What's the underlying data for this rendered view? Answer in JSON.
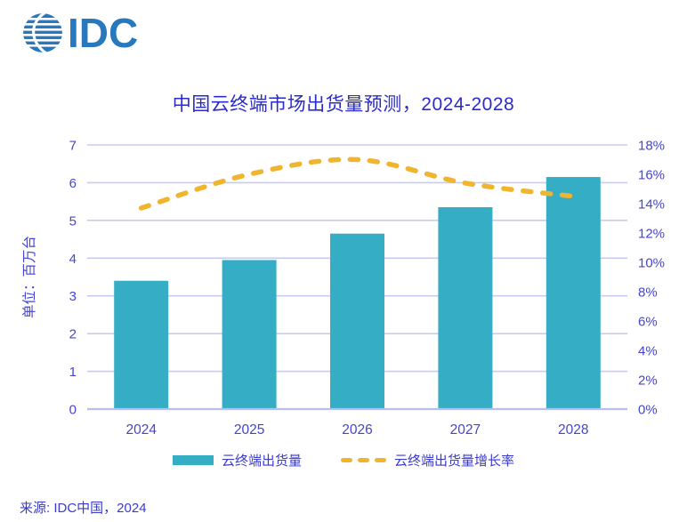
{
  "logo": {
    "text": "IDC",
    "color": "#2878BE"
  },
  "title": {
    "text": "中国云终端市场出货量预测，2024-2028",
    "color": "#2B2BCC"
  },
  "source": "来源: IDC中国，2024",
  "legend": {
    "items": [
      {
        "label": "云终端出货量",
        "marker": "bar-swatch"
      },
      {
        "label": "云终端出货量增长率",
        "marker": "dashed-line-swatch"
      }
    ]
  },
  "colors": {
    "bar": "#35ADC5",
    "line": "#F0B42D",
    "tick_text": "#4545CE",
    "grid": "#C9CAF2",
    "axis_line": "#BCBDEF",
    "title_text": "#2B2BCC",
    "logo_blue": "#2878BE"
  },
  "chart_data": {
    "type": "combo-bar-line",
    "title": "中国云终端市场出货量预测，2024-2028",
    "categories": [
      "2024",
      "2025",
      "2026",
      "2027",
      "2028"
    ],
    "series": [
      {
        "name": "云终端出货量",
        "type": "bar",
        "axis": "left",
        "unit": "百万台",
        "values": [
          3.4,
          3.95,
          4.65,
          5.35,
          6.15
        ]
      },
      {
        "name": "云终端出货量增长率",
        "type": "line",
        "line_style": "dashed",
        "axis": "right",
        "unit": "%",
        "values": [
          13.7,
          16.0,
          17.0,
          15.4,
          14.5
        ]
      }
    ],
    "left_axis": {
      "label": "单位：百万台",
      "min": 0,
      "max": 7,
      "tick_step": 1
    },
    "right_axis": {
      "min": 0,
      "max": 18,
      "tick_step": 2,
      "suffix": "%"
    },
    "grid": {
      "horizontal_at_left_ticks": true,
      "vertical": false
    },
    "legend_position": "bottom"
  }
}
